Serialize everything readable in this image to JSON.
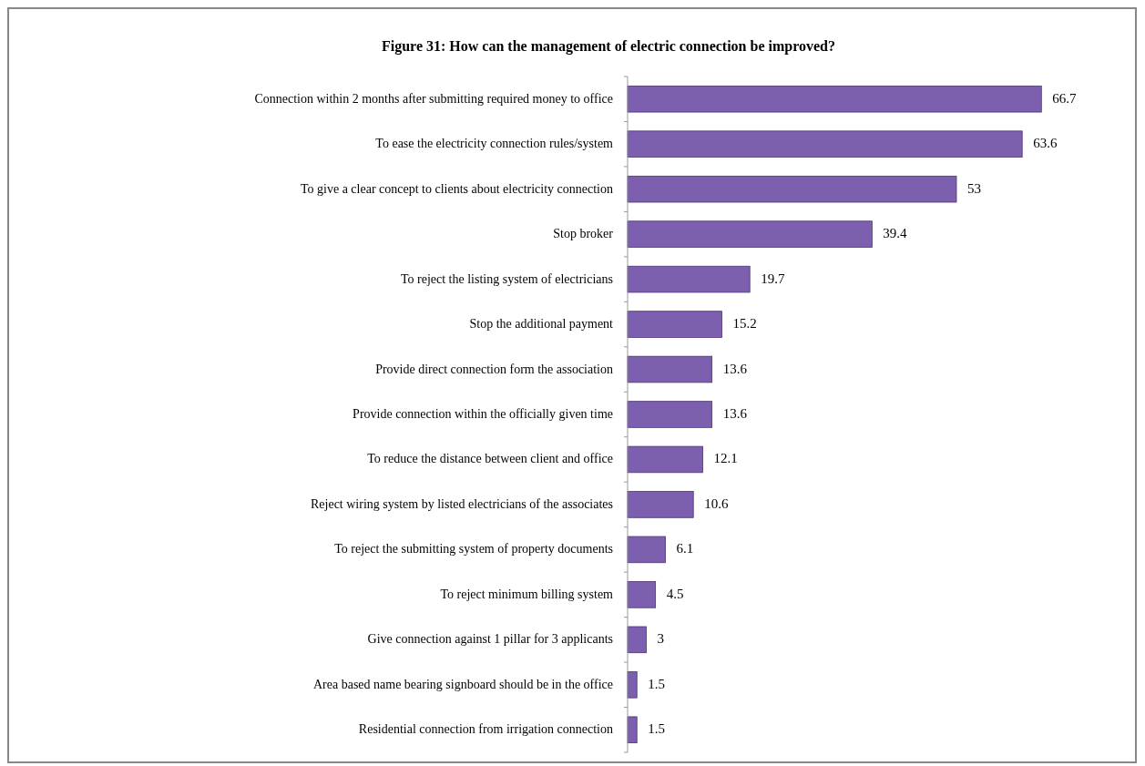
{
  "chart_data": {
    "type": "bar",
    "orientation": "horizontal",
    "title": "Figure 31: How can the management of electric connection be improved?",
    "categories": [
      "Connection within 2 months after submitting required money to office",
      "To ease the electricity connection rules/system",
      "To give a clear concept to clients about electricity connection",
      "Stop broker",
      "To reject the listing system of electricians",
      "Stop the additional payment",
      "Provide direct connection form the association",
      "Provide connection within the officially given time",
      "To reduce the distance between client and office",
      "Reject wiring system by listed electricians of the associates",
      "To reject the submitting system of property documents",
      "To reject minimum billing system",
      "Give connection against 1 pillar for 3 applicants",
      "Area based name bearing signboard should be in the office",
      "Residential connection from irrigation connection"
    ],
    "values": [
      66.7,
      63.6,
      53,
      39.4,
      19.7,
      15.2,
      13.6,
      13.6,
      12.1,
      10.6,
      6.1,
      4.5,
      3,
      1.5,
      1.5
    ],
    "color": "#7c5fae",
    "data_labels": true
  }
}
